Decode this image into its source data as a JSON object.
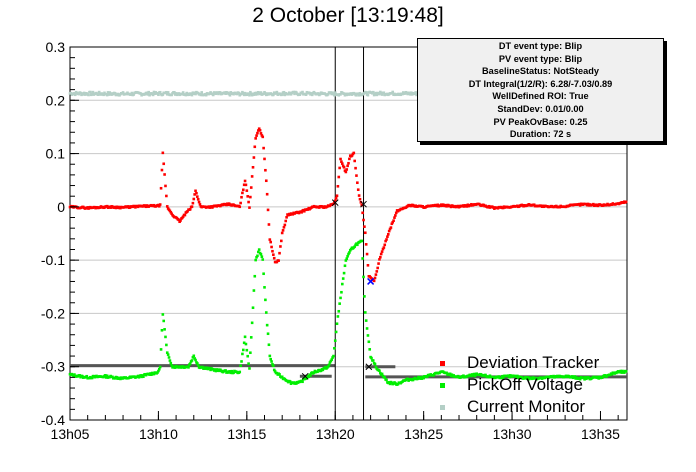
{
  "title": "2 October [13:19:48]",
  "info_box": {
    "lines": [
      "DT event type: Blip",
      "PV event type: Blip",
      "BaselineStatus: NotSteady",
      "DT Integral(1/2/R): 6.28/-7.03/0.89",
      "WellDefined ROI: True",
      "StandDev: 0.01/0.00",
      "PV PeakOvBase: 0.25",
      "Duration: 72 s"
    ]
  },
  "legend": [
    {
      "label": "Deviation Tracker",
      "color": "#ff0000"
    },
    {
      "label": "PickOff Voltage",
      "color": "#00ee00"
    },
    {
      "label": "Current Monitor",
      "color": "#b4cfc6"
    }
  ],
  "chart_data": {
    "type": "scatter",
    "title": "2 October [13:19:48]",
    "x_unit": "minutes",
    "xlim": [
      "13h05",
      "13h36.5"
    ],
    "ylim": [
      -0.4,
      0.3
    ],
    "yticks": [
      "0.3",
      "0.2",
      "0.1",
      "0",
      "-0.1",
      "-0.2",
      "-0.3",
      "-0.4"
    ],
    "xticks": [
      "13h05",
      "13h10",
      "13h15",
      "13h20",
      "13h25",
      "13h30",
      "13h35"
    ],
    "grid": "horizontal",
    "legend_position": "bottom-right",
    "roi_lines_x": [
      "13h20",
      "13h21.6"
    ],
    "series": [
      {
        "name": "Deviation Tracker",
        "color": "#ff0000",
        "points": [
          [
            "13h05",
            0.0
          ],
          [
            "13h06",
            -0.002
          ],
          [
            "13h07",
            0.0
          ],
          [
            "13h08",
            -0.001
          ],
          [
            "13h09",
            0.001
          ],
          [
            "13h10",
            0.002
          ],
          [
            "13h10.1",
            0.003
          ],
          [
            "13h10.25",
            0.1
          ],
          [
            "13h10.5",
            0.0
          ],
          [
            "13h10.8",
            -0.015
          ],
          [
            "13h11.2",
            -0.027
          ],
          [
            "13h11.6",
            -0.01
          ],
          [
            "13h11.9",
            0.0
          ],
          [
            "13h12.1",
            0.03
          ],
          [
            "13h12.4",
            0.0
          ],
          [
            "13h13",
            0.0
          ],
          [
            "13h14",
            0.005
          ],
          [
            "13h14.6",
            0.0
          ],
          [
            "13h14.9",
            0.05
          ],
          [
            "13h15.15",
            0.0
          ],
          [
            "13h15.5",
            0.13
          ],
          [
            "13h15.7",
            0.148
          ],
          [
            "13h15.9",
            0.13
          ],
          [
            "13h16.1",
            0.05
          ],
          [
            "13h16.3",
            -0.06
          ],
          [
            "13h16.6",
            -0.105
          ],
          [
            "13h16.8",
            -0.1
          ],
          [
            "13h17",
            -0.05
          ],
          [
            "13h17.3",
            -0.015
          ],
          [
            "13h18",
            -0.01
          ],
          [
            "13h18.4",
            -0.005
          ],
          [
            "13h18.8",
            0.0
          ],
          [
            "13h19.5",
            0.0
          ],
          [
            "13h19.9",
            0.005
          ],
          [
            "13h20.1",
            0.02
          ],
          [
            "13h20.3",
            0.09
          ],
          [
            "13h20.6",
            0.065
          ],
          [
            "13h20.85",
            0.095
          ],
          [
            "13h21.05",
            0.1
          ],
          [
            "13h21.2",
            0.06
          ],
          [
            "13h21.35",
            0.02
          ],
          [
            "13h21.5",
            0.002
          ],
          [
            "13h21.7",
            -0.05
          ],
          [
            "13h21.9",
            -0.13
          ],
          [
            "13h22.2",
            -0.14
          ],
          [
            "13h22.5",
            -0.1
          ],
          [
            "13h23",
            -0.05
          ],
          [
            "13h23.5",
            -0.008
          ],
          [
            "13h24.2",
            0.003
          ],
          [
            "13h25",
            0.0
          ],
          [
            "13h26",
            0.003
          ],
          [
            "13h27",
            0.0
          ],
          [
            "13h28",
            0.005
          ],
          [
            "13h29",
            -0.002
          ],
          [
            "13h30",
            0.0
          ],
          [
            "13h31",
            0.004
          ],
          [
            "13h32",
            0.0
          ],
          [
            "13h33",
            0.001
          ],
          [
            "13h34",
            0.005
          ],
          [
            "13h35",
            0.003
          ],
          [
            "13h36",
            0.006
          ],
          [
            "13h36.5",
            0.01
          ]
        ]
      },
      {
        "name": "PickOff Voltage",
        "color": "#00ee00",
        "points": [
          [
            "13h05",
            -0.315
          ],
          [
            "13h06",
            -0.32
          ],
          [
            "13h07",
            -0.318
          ],
          [
            "13h08",
            -0.322
          ],
          [
            "13h09",
            -0.318
          ],
          [
            "13h10",
            -0.31
          ],
          [
            "13h10.1",
            -0.3
          ],
          [
            "13h10.25",
            -0.2
          ],
          [
            "13h10.5",
            -0.275
          ],
          [
            "13h10.8",
            -0.3
          ],
          [
            "13h11.2",
            -0.3
          ],
          [
            "13h11.7",
            -0.3
          ],
          [
            "13h12",
            -0.28
          ],
          [
            "13h12.3",
            -0.3
          ],
          [
            "13h13",
            -0.305
          ],
          [
            "13h14",
            -0.31
          ],
          [
            "13h14.6",
            -0.31
          ],
          [
            "13h14.9",
            -0.245
          ],
          [
            "13h15.15",
            -0.305
          ],
          [
            "13h15.5",
            -0.1
          ],
          [
            "13h15.7",
            -0.08
          ],
          [
            "13h15.9",
            -0.1
          ],
          [
            "13h16.1",
            -0.2
          ],
          [
            "13h16.3",
            -0.28
          ],
          [
            "13h16.6",
            -0.31
          ],
          [
            "13h17",
            -0.32
          ],
          [
            "13h17.5",
            -0.33
          ],
          [
            "13h18",
            -0.33
          ],
          [
            "13h18.4",
            -0.32
          ],
          [
            "13h18.8",
            -0.31
          ],
          [
            "13h19.3",
            -0.305
          ],
          [
            "13h19.6",
            -0.3
          ],
          [
            "13h19.9",
            -0.28
          ],
          [
            "13h20.1",
            -0.22
          ],
          [
            "13h20.3",
            -0.17
          ],
          [
            "13h20.6",
            -0.1
          ],
          [
            "13h20.9",
            -0.08
          ],
          [
            "13h21.2",
            -0.07
          ],
          [
            "13h21.5",
            -0.065
          ],
          [
            "13h21.7",
            -0.2
          ],
          [
            "13h22",
            -0.28
          ],
          [
            "13h22.3",
            -0.3
          ],
          [
            "13h23",
            -0.33
          ],
          [
            "13h23.5",
            -0.332
          ],
          [
            "13h24",
            -0.325
          ],
          [
            "13h25",
            -0.32
          ],
          [
            "13h26",
            -0.31
          ],
          [
            "13h27",
            -0.32
          ],
          [
            "13h28",
            -0.315
          ],
          [
            "13h29",
            -0.32
          ],
          [
            "13h30",
            -0.318
          ],
          [
            "13h31",
            -0.322
          ],
          [
            "13h32",
            -0.32
          ],
          [
            "13h33",
            -0.318
          ],
          [
            "13h34",
            -0.322
          ],
          [
            "13h35",
            -0.32
          ],
          [
            "13h36",
            -0.31
          ],
          [
            "13h36.5",
            -0.31
          ]
        ]
      },
      {
        "name": "Current Monitor",
        "color": "#b4cfc6",
        "points": [
          [
            "13h05",
            0.213
          ],
          [
            "13h08",
            0.212
          ],
          [
            "13h11",
            0.213
          ],
          [
            "13h14",
            0.212
          ],
          [
            "13h17",
            0.213
          ],
          [
            "13h20",
            0.212
          ],
          [
            "13h23",
            0.213
          ],
          [
            "13h26",
            0.212
          ],
          [
            "13h29",
            0.213
          ],
          [
            "13h32",
            0.212
          ],
          [
            "13h35",
            0.213
          ],
          [
            "13h36.5",
            0.212
          ]
        ]
      }
    ],
    "baseline_segments": [
      {
        "x": [
          "13h05",
          "13h20"
        ],
        "y": -0.298
      },
      {
        "x": [
          "13h18",
          "13h19.8"
        ],
        "y": -0.318
      },
      {
        "x": [
          "13h21.7",
          "13h23.4"
        ],
        "y": -0.3
      },
      {
        "x": [
          "13h21.7",
          "13h36.5"
        ],
        "y": -0.319
      }
    ]
  }
}
